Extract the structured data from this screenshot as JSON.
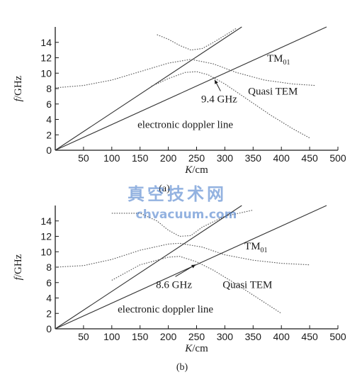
{
  "watermark": {
    "text_cn": "真空技术网",
    "text_en": "chvacuum.com"
  },
  "colors": {
    "axis": "#1a1a1a",
    "curve": "#333333",
    "dotted_curve": "#555555",
    "watermark": "#3c74c8"
  },
  "chart_data": [
    {
      "type": "line",
      "panel_label": "(a)",
      "xlabel": "K/cm",
      "ylabel": "f/GHz",
      "xlim": [
        0,
        500
      ],
      "ylim": [
        0,
        16
      ],
      "x_ticks": [
        50,
        100,
        150,
        200,
        250,
        300,
        350,
        400,
        450,
        500
      ],
      "y_ticks": [
        0,
        2,
        4,
        6,
        8,
        10,
        12,
        14
      ],
      "grid": false,
      "annotations": [
        {
          "text": "TM",
          "subscript": "01",
          "x": 395,
          "y": 11.5
        },
        {
          "text": "Quasi TEM",
          "x": 385,
          "y": 7.2
        },
        {
          "text": "9.4 GHz",
          "x": 290,
          "y": 6.2,
          "arrow_to": [
            282,
            9.4
          ]
        },
        {
          "text": "electronic doppler line",
          "x": 230,
          "y": 2.9
        }
      ],
      "series": [
        {
          "style": "solid",
          "x": [
            0,
            330
          ],
          "y": [
            0,
            16
          ]
        },
        {
          "style": "solid",
          "x": [
            0,
            480
          ],
          "y": [
            0,
            16
          ]
        },
        {
          "style": "dotted",
          "x": [
            180,
            200,
            220,
            240,
            260,
            280,
            300,
            320
          ],
          "y": [
            15.0,
            14.4,
            13.6,
            13.0,
            13.2,
            14.0,
            14.9,
            15.8
          ]
        },
        {
          "style": "dotted",
          "x": [
            0,
            50,
            100,
            150,
            200,
            240,
            280,
            320,
            370,
            420,
            460
          ],
          "y": [
            8.1,
            8.4,
            9.1,
            10.2,
            11.3,
            11.8,
            11.2,
            10.1,
            9.1,
            8.6,
            8.4
          ]
        },
        {
          "style": "dotted",
          "x": [
            170,
            200,
            230,
            250,
            270,
            300,
            340,
            380,
            420,
            450
          ],
          "y": [
            8.3,
            9.3,
            10.1,
            10.2,
            9.8,
            8.6,
            6.6,
            4.6,
            2.8,
            1.6
          ]
        }
      ]
    },
    {
      "type": "line",
      "panel_label": "(b)",
      "xlabel": "K/cm",
      "ylabel": "f/GHz",
      "xlim": [
        0,
        500
      ],
      "ylim": [
        0,
        16
      ],
      "x_ticks": [
        50,
        100,
        150,
        200,
        250,
        300,
        350,
        400,
        450,
        500
      ],
      "y_ticks": [
        0,
        2,
        4,
        6,
        8,
        10,
        12,
        14
      ],
      "grid": false,
      "annotations": [
        {
          "text": "TM",
          "subscript": "01",
          "x": 355,
          "y": 10.3
        },
        {
          "text": "Quasi TEM",
          "x": 340,
          "y": 5.3
        },
        {
          "text": "8.6 GHz",
          "x": 210,
          "y": 5.3,
          "arrow_to": [
            248,
            8.6
          ]
        },
        {
          "text": "electronic doppler line",
          "x": 195,
          "y": 2.1
        }
      ],
      "series": [
        {
          "style": "solid",
          "x": [
            0,
            330
          ],
          "y": [
            0,
            16
          ]
        },
        {
          "style": "solid",
          "x": [
            0,
            480
          ],
          "y": [
            0,
            16
          ]
        },
        {
          "style": "dotted",
          "x": [
            100,
            150,
            180,
            200,
            220,
            240,
            260,
            300,
            350
          ],
          "y": [
            15.0,
            15.0,
            14.0,
            12.8,
            12.0,
            12.1,
            13.2,
            14.6,
            15.4
          ]
        },
        {
          "style": "dotted",
          "x": [
            0,
            50,
            100,
            150,
            200,
            220,
            260,
            300,
            350,
            400,
            450
          ],
          "y": [
            8.0,
            8.2,
            9.0,
            10.2,
            11.0,
            11.1,
            10.6,
            9.6,
            8.9,
            8.5,
            8.3
          ]
        },
        {
          "style": "dotted",
          "x": [
            100,
            150,
            200,
            220,
            250,
            280,
            320,
            360,
            400
          ],
          "y": [
            6.3,
            8.3,
            9.3,
            9.4,
            8.7,
            7.6,
            5.8,
            3.9,
            2.0
          ]
        }
      ]
    }
  ]
}
